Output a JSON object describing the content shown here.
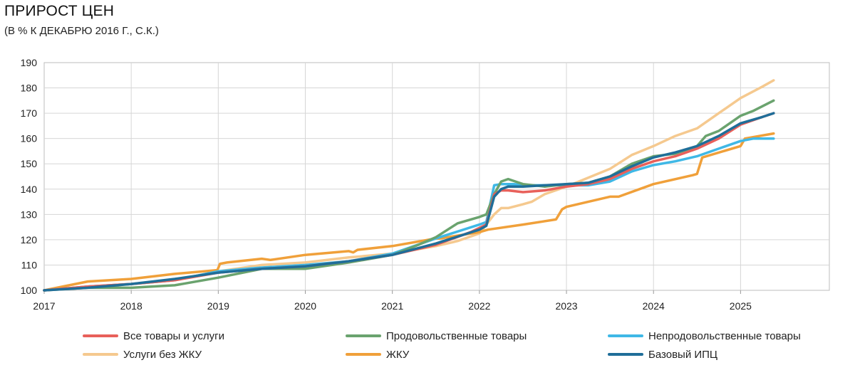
{
  "chart_data": {
    "type": "line",
    "title": "ПРИРОСТ ЦЕН",
    "subtitle": "(В % К ДЕКАБРЮ 2016 Г., С.К.)",
    "xlabel": "",
    "ylabel": "",
    "xlim": [
      2017,
      2026.02
    ],
    "ylim": [
      100,
      190
    ],
    "yticks": [
      "100",
      "110",
      "120",
      "130",
      "140",
      "150",
      "160",
      "170",
      "180",
      "190"
    ],
    "xticks": [
      "2017",
      "2018",
      "2019",
      "2020",
      "2021",
      "2022",
      "2023",
      "2024",
      "2025"
    ],
    "grid": true,
    "legend_position": "bottom",
    "series": [
      {
        "name": "Все товары и услуги",
        "color": "#e8605a",
        "x": [
          2017,
          2017.5,
          2018,
          2018.5,
          2019,
          2019.5,
          2020,
          2020.5,
          2021,
          2021.5,
          2021.9,
          2022.08,
          2022.17,
          2022.25,
          2022.33,
          2022.5,
          2022.75,
          2023,
          2023.25,
          2023.5,
          2023.75,
          2024,
          2024.25,
          2024.5,
          2024.75,
          2025,
          2025.25,
          2025.38
        ],
        "y": [
          100,
          101.5,
          102.5,
          104,
          107,
          108.5,
          109.5,
          111.5,
          114,
          118,
          123,
          126,
          138,
          139.5,
          139.5,
          138.8,
          139.5,
          141,
          142,
          144,
          148,
          151,
          153,
          156,
          160,
          165.5,
          168.5,
          170
        ]
      },
      {
        "name": "Продовольственные товары",
        "color": "#6aa36e",
        "x": [
          2017,
          2017.5,
          2018,
          2018.5,
          2019,
          2019.5,
          2020,
          2020.5,
          2021,
          2021.3,
          2021.5,
          2021.75,
          2022,
          2022.08,
          2022.17,
          2022.25,
          2022.33,
          2022.5,
          2022.75,
          2023,
          2023.25,
          2023.5,
          2023.75,
          2024,
          2024.25,
          2024.5,
          2024.6,
          2024.75,
          2025,
          2025.15,
          2025.38
        ],
        "y": [
          100,
          101,
          101,
          102,
          105,
          108.5,
          108.5,
          111,
          114,
          118,
          121,
          126.5,
          129,
          130,
          138,
          143,
          144,
          142,
          141,
          142,
          142.5,
          145,
          150,
          153,
          154,
          157,
          161,
          163,
          169,
          171,
          175
        ]
      },
      {
        "name": "Непродовольственные товары",
        "color": "#3fb8e6",
        "x": [
          2017,
          2017.5,
          2018,
          2018.5,
          2019,
          2019.5,
          2020,
          2020.5,
          2021,
          2021.5,
          2022,
          2022.08,
          2022.17,
          2022.25,
          2022.4,
          2022.5,
          2022.75,
          2023,
          2023.25,
          2023.5,
          2023.75,
          2024,
          2024.25,
          2024.5,
          2024.75,
          2025,
          2025.15,
          2025.38
        ],
        "y": [
          100,
          101.5,
          102.5,
          104,
          107.5,
          109,
          110,
          111.5,
          114.5,
          120.5,
          126,
          127,
          141.5,
          142,
          142,
          141.5,
          141.5,
          141.5,
          141.5,
          143,
          147,
          149.5,
          151,
          153,
          156,
          159,
          160,
          160
        ]
      },
      {
        "name": "Услуги без ЖКУ",
        "color": "#f5c98f",
        "x": [
          2017,
          2017.5,
          2018,
          2018.5,
          2019,
          2019.5,
          2020,
          2020.5,
          2021,
          2021.5,
          2021.75,
          2022,
          2022.17,
          2022.25,
          2022.33,
          2022.5,
          2022.6,
          2022.75,
          2023,
          2023.25,
          2023.5,
          2023.75,
          2024,
          2024.25,
          2024.5,
          2024.75,
          2025,
          2025.25,
          2025.38
        ],
        "y": [
          100,
          101.5,
          102.5,
          104,
          107.5,
          110,
          111,
          113,
          114.5,
          117.5,
          119.5,
          122.5,
          130,
          132.5,
          132.5,
          134,
          135,
          138,
          141,
          144.5,
          148,
          153.5,
          157,
          161,
          164,
          170,
          176,
          180.5,
          183
        ]
      },
      {
        "name": "ЖКУ",
        "color": "#f0a03a",
        "x": [
          2017,
          2017.5,
          2018,
          2018.5,
          2018.99,
          2019.02,
          2019.1,
          2019.5,
          2019.6,
          2020,
          2020.5,
          2020.55,
          2020.6,
          2021,
          2021.5,
          2021.55,
          2022,
          2022.1,
          2022.5,
          2022.88,
          2022.95,
          2023,
          2023.5,
          2023.6,
          2024,
          2024.45,
          2024.5,
          2024.56,
          2025,
          2025.05,
          2025.38
        ],
        "y": [
          100,
          103.5,
          104.5,
          106.5,
          108,
          110.5,
          111,
          112.5,
          112,
          114,
          115.5,
          115,
          116,
          117.5,
          120.5,
          120.5,
          123,
          124,
          126,
          128,
          132,
          133,
          137,
          137,
          142,
          145.5,
          146,
          152.5,
          157,
          160,
          162
        ]
      },
      {
        "name": "Базовый ИПЦ",
        "color": "#1f6e99",
        "x": [
          2017,
          2017.5,
          2018,
          2018.5,
          2019,
          2019.5,
          2020,
          2020.5,
          2021,
          2021.5,
          2022,
          2022.08,
          2022.17,
          2022.25,
          2022.33,
          2022.5,
          2022.75,
          2023,
          2023.25,
          2023.5,
          2023.75,
          2024,
          2024.25,
          2024.5,
          2024.75,
          2025,
          2025.25,
          2025.38
        ],
        "y": [
          100,
          101,
          102.5,
          104.5,
          107,
          108.5,
          109.5,
          111.5,
          114,
          118.5,
          124,
          125.5,
          137,
          140,
          141,
          141,
          141.5,
          142,
          142.5,
          145,
          149,
          152.5,
          154.5,
          157,
          161,
          166,
          168.5,
          170
        ]
      }
    ]
  }
}
